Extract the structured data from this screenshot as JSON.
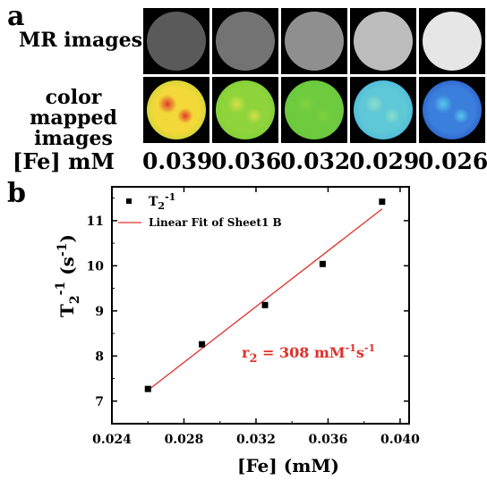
{
  "panel_a": {
    "letter": "a",
    "row1_label": "MR images",
    "row2_label_line1": "color mapped",
    "row2_label_line2": "images",
    "fe_label": "[Fe] mM",
    "samples": [
      {
        "value": "0.039",
        "mr_gray": "#5a5a5a",
        "map_inner": "#f3d83a",
        "map_outer": "#9ed23a",
        "map_speck": "#e23a2a"
      },
      {
        "value": "0.036",
        "mr_gray": "#737373",
        "map_inner": "#8fd43a",
        "map_outer": "#6ec93c",
        "map_speck": "#d6e04a"
      },
      {
        "value": "0.032",
        "mr_gray": "#8f8f8f",
        "map_inner": "#6fcb3e",
        "map_outer": "#63c43f",
        "map_speck": "#7fd13c"
      },
      {
        "value": "0.029",
        "mr_gray": "#bcbcbc",
        "map_inner": "#5ec8d6",
        "map_outer": "#3aa7e0",
        "map_speck": "#8ee0cc"
      },
      {
        "value": "0.026",
        "mr_gray": "#e6e6e6",
        "map_inner": "#3b7fdc",
        "map_outer": "#1f3fb0",
        "map_speck": "#58c8ec"
      }
    ]
  },
  "panel_b": {
    "letter": "b",
    "legend_point_label": "T",
    "legend_point_sub": "2",
    "legend_point_sup": "-1",
    "legend_line_label": "Linear Fit of Sheet1 B",
    "annotation_main": "r",
    "annotation_sub": "2",
    "annotation_eq": " = 308 mM",
    "annotation_sup1": "-1",
    "annotation_s": "s",
    "annotation_sup2": "-1",
    "annotation_color": "#e0302a",
    "ylabel_T": "T",
    "ylabel_sub": "2",
    "ylabel_sup": "-1",
    "ylabel_unit": " (s",
    "ylabel_unit_sup": "-1",
    "ylabel_close": ")",
    "xlabel": "[Fe] (mM)"
  },
  "chart_data": {
    "type": "scatter",
    "x_ticks": [
      "0.024",
      "0.028",
      "0.032",
      "0.036",
      "0.040"
    ],
    "y_ticks": [
      "7",
      "8",
      "9",
      "10",
      "11"
    ],
    "xlim": [
      0.024,
      0.0405
    ],
    "ylim": [
      6.5,
      11.75
    ],
    "series": [
      {
        "name": "T2-1",
        "x": [
          0.026,
          0.029,
          0.0325,
          0.0357,
          0.039
        ],
        "y": [
          7.27,
          8.26,
          9.13,
          10.04,
          11.42
        ],
        "color": "#000000"
      }
    ],
    "fit": {
      "name": "Linear Fit of Sheet1 B",
      "x": [
        0.026,
        0.039
      ],
      "y": [
        7.24,
        11.26
      ],
      "color": "#e0302a"
    }
  }
}
